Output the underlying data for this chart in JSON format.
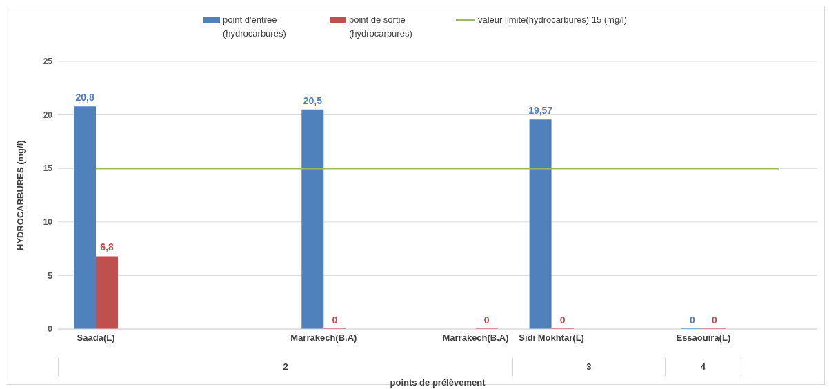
{
  "chart_data": {
    "type": "bar",
    "xlabel": "points de prélèvement",
    "ylabel": "HYDROCARBURES (mg/l)",
    "categories": [
      "Saada(L)",
      null,
      null,
      "Marrakech(B.A)",
      null,
      "Marrakech(B.A)",
      "Sidi Mokhtar(L)",
      null,
      "Essaouira(L)",
      null
    ],
    "series": [
      {
        "name": "point d'entree (hydrocarbures)",
        "color": "#4f81bd",
        "values": [
          20.8,
          null,
          null,
          20.5,
          null,
          null,
          19.57,
          null,
          0,
          null
        ],
        "value_labels": [
          "20,8",
          null,
          null,
          "20,5",
          null,
          null,
          "19,57",
          null,
          "0",
          null
        ]
      },
      {
        "name": "point de sortie (hydrocarbures)",
        "color": "#c0504d",
        "values": [
          6.8,
          null,
          null,
          0,
          null,
          0,
          0,
          null,
          0,
          null
        ],
        "value_labels": [
          "6,8",
          null,
          null,
          "0",
          null,
          "0",
          "0",
          null,
          "0",
          null
        ]
      },
      {
        "name": "valeur limite(hydrocarbures) 15 (mg/l)",
        "type": "line",
        "color": "#9bbb59",
        "values": [
          15,
          15,
          15,
          15,
          15,
          15,
          15,
          15,
          15,
          15
        ]
      }
    ],
    "annotations": [
      "2",
      "3",
      "4"
    ],
    "ylim": [
      0,
      25
    ],
    "yticks": [
      0,
      5,
      10,
      15,
      20,
      25
    ],
    "grid": "y",
    "legend": "top",
    "marker": "none"
  }
}
